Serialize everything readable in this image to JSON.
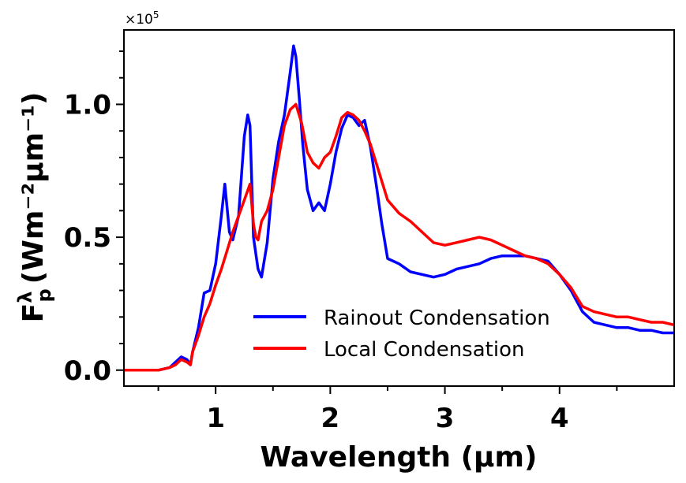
{
  "chart_data": {
    "type": "line",
    "title": "",
    "xlabel": "Wavelength (μm)",
    "ylabel": "F_p^λ (Wm⁻²μm⁻¹)",
    "ylabel_parts": {
      "base": "F",
      "sup": "λ",
      "sub": "p",
      "units": "(Wm⁻²μm⁻¹)"
    },
    "y_scale_label": "×10⁵",
    "y_scale_parts": {
      "base": "×10",
      "exp": "5"
    },
    "xlim": [
      0.2,
      5.0
    ],
    "ylim": [
      -0.06,
      1.28
    ],
    "xticks": [
      1,
      2,
      3,
      4
    ],
    "xtick_labels": [
      "1",
      "2",
      "3",
      "4"
    ],
    "yticks": [
      0.0,
      0.5,
      1.0
    ],
    "ytick_labels": [
      "0.0",
      "0.5",
      "1.0"
    ],
    "legend_position": "lower-center",
    "grid": false,
    "series": [
      {
        "name": "Rainout Condensation",
        "color": "#0000ff",
        "x": [
          0.2,
          0.5,
          0.6,
          0.65,
          0.7,
          0.75,
          0.78,
          0.8,
          0.85,
          0.9,
          0.95,
          1.0,
          1.05,
          1.08,
          1.12,
          1.15,
          1.2,
          1.25,
          1.28,
          1.3,
          1.33,
          1.37,
          1.4,
          1.45,
          1.5,
          1.55,
          1.6,
          1.65,
          1.68,
          1.7,
          1.73,
          1.76,
          1.8,
          1.85,
          1.9,
          1.95,
          2.0,
          2.05,
          2.1,
          2.15,
          2.2,
          2.25,
          2.3,
          2.35,
          2.4,
          2.45,
          2.5,
          2.6,
          2.7,
          2.8,
          2.9,
          3.0,
          3.1,
          3.2,
          3.3,
          3.4,
          3.5,
          3.6,
          3.7,
          3.8,
          3.9,
          4.0,
          4.1,
          4.2,
          4.3,
          4.4,
          4.5,
          4.6,
          4.7,
          4.8,
          4.9,
          5.0
        ],
        "y": [
          0.0,
          0.0,
          0.01,
          0.03,
          0.05,
          0.04,
          0.02,
          0.07,
          0.16,
          0.29,
          0.3,
          0.4,
          0.58,
          0.7,
          0.52,
          0.49,
          0.58,
          0.88,
          0.96,
          0.92,
          0.5,
          0.38,
          0.35,
          0.48,
          0.72,
          0.86,
          0.96,
          1.12,
          1.22,
          1.18,
          1.02,
          0.85,
          0.68,
          0.6,
          0.63,
          0.6,
          0.7,
          0.82,
          0.91,
          0.96,
          0.95,
          0.92,
          0.94,
          0.84,
          0.7,
          0.55,
          0.42,
          0.4,
          0.37,
          0.36,
          0.35,
          0.36,
          0.38,
          0.39,
          0.4,
          0.42,
          0.43,
          0.43,
          0.43,
          0.42,
          0.41,
          0.36,
          0.3,
          0.22,
          0.18,
          0.17,
          0.16,
          0.16,
          0.15,
          0.15,
          0.14,
          0.14
        ]
      },
      {
        "name": "Local Condensation",
        "color": "#ff0000",
        "x": [
          0.2,
          0.5,
          0.6,
          0.65,
          0.7,
          0.75,
          0.78,
          0.8,
          0.85,
          0.9,
          0.95,
          1.0,
          1.05,
          1.1,
          1.15,
          1.2,
          1.25,
          1.3,
          1.33,
          1.35,
          1.37,
          1.4,
          1.45,
          1.5,
          1.55,
          1.6,
          1.65,
          1.7,
          1.75,
          1.8,
          1.85,
          1.9,
          1.95,
          2.0,
          2.05,
          2.1,
          2.15,
          2.2,
          2.25,
          2.3,
          2.35,
          2.4,
          2.5,
          2.6,
          2.7,
          2.8,
          2.9,
          3.0,
          3.1,
          3.2,
          3.3,
          3.4,
          3.5,
          3.6,
          3.7,
          3.8,
          3.9,
          4.0,
          4.1,
          4.2,
          4.3,
          4.4,
          4.5,
          4.6,
          4.7,
          4.8,
          4.9,
          5.0
        ],
        "y": [
          0.0,
          0.0,
          0.01,
          0.02,
          0.04,
          0.03,
          0.02,
          0.07,
          0.13,
          0.2,
          0.25,
          0.32,
          0.38,
          0.45,
          0.52,
          0.58,
          0.64,
          0.7,
          0.55,
          0.5,
          0.49,
          0.56,
          0.6,
          0.68,
          0.8,
          0.92,
          0.98,
          1.0,
          0.93,
          0.82,
          0.78,
          0.76,
          0.8,
          0.82,
          0.88,
          0.95,
          0.97,
          0.96,
          0.94,
          0.9,
          0.85,
          0.78,
          0.64,
          0.59,
          0.56,
          0.52,
          0.48,
          0.47,
          0.48,
          0.49,
          0.5,
          0.49,
          0.47,
          0.45,
          0.43,
          0.42,
          0.4,
          0.36,
          0.31,
          0.24,
          0.22,
          0.21,
          0.2,
          0.2,
          0.19,
          0.18,
          0.18,
          0.17
        ]
      }
    ]
  }
}
